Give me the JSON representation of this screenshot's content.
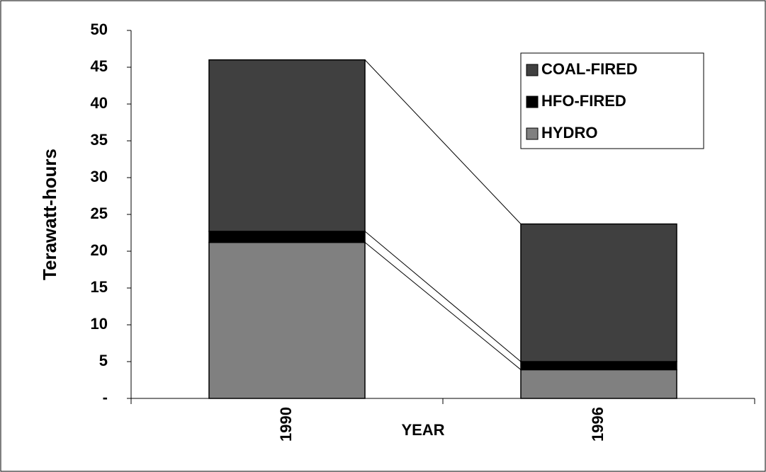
{
  "chart_data": {
    "type": "stacked_bar",
    "xlabel": "YEAR",
    "ylabel": "Terawatt-hours",
    "categories": [
      "1990",
      "1996"
    ],
    "series": [
      {
        "name": "HYDRO",
        "color": "#808080",
        "values": [
          21.2,
          3.9
        ]
      },
      {
        "name": "HFO-FIRED",
        "color": "#000000",
        "values": [
          1.5,
          1.1
        ]
      },
      {
        "name": "COAL-FIRED",
        "color": "#404040",
        "values": [
          23.3,
          18.7
        ]
      }
    ],
    "ylim": [
      0,
      50
    ],
    "yticks": [
      {
        "value": 0,
        "label": "-"
      },
      5,
      10,
      15,
      20,
      25,
      30,
      35,
      40,
      45,
      50
    ],
    "legend": "upper right",
    "series_lines": true
  }
}
